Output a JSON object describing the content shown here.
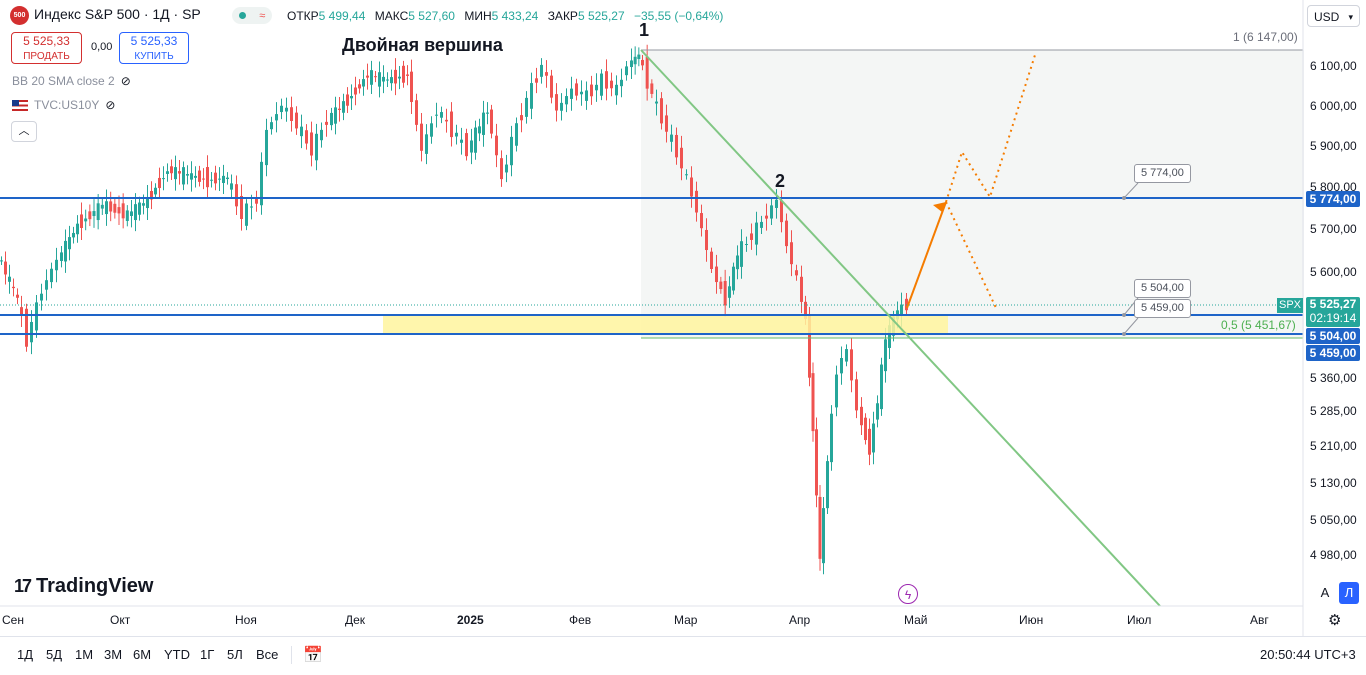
{
  "header": {
    "symbol_title": "Индекс S&P 500 · 1Д · SP",
    "logo_text": "500",
    "open_label": "ОТКР",
    "open_value": "5 499,44",
    "high_label": "МАКС",
    "high_value": "5 527,60",
    "low_label": "МИН",
    "low_value": "5 433,24",
    "close_label": "ЗАКР",
    "close_value": "5 525,27",
    "change": "−35,55 (−0,64%)"
  },
  "trade": {
    "sell_price": "5 525,33",
    "sell_label": "ПРОДАТЬ",
    "spread": "0,00",
    "buy_price": "5 525,33",
    "buy_label": "КУПИТЬ"
  },
  "indicators": [
    {
      "label": "BB 20 SMA close 2"
    },
    {
      "label": "TVC:US10Y"
    }
  ],
  "currency": "USD",
  "annotations": {
    "double_top": "Двойная вершина",
    "peak1": "1",
    "peak2": "2",
    "fib_top": "1 (6 147,00)",
    "fib_half": "0,5 (5 451,67)",
    "box_5774": "5 774,00",
    "box_5504": "5 504,00",
    "box_5459": "5 459,00"
  },
  "price_axis": {
    "labels": [
      "6 100,00",
      "6 000,00",
      "5 900,00",
      "5 800,00",
      "5 700,00",
      "5 600,00",
      "5 360,00",
      "5 285,00",
      "5 210,00",
      "5 130,00",
      "5 050,00",
      "4 980,00"
    ],
    "tag_5774": "5 774,00",
    "spx_label": "SPX",
    "last_price": "5 525,27",
    "countdown": "02:19:14",
    "tag_5504": "5 504,00",
    "tag_5459": "5 459,00"
  },
  "time_axis": {
    "labels": [
      "Сен",
      "Окт",
      "Ноя",
      "Дек",
      "2025",
      "Фев",
      "Мар",
      "Апр",
      "Май",
      "Июн",
      "Июл",
      "Авг"
    ]
  },
  "timeframes": [
    "1Д",
    "5Д",
    "1М",
    "3М",
    "6М",
    "YTD",
    "1Г",
    "5Л",
    "Все"
  ],
  "clock": "20:50:44 UTC+3",
  "brand": "TradingView",
  "scale_buttons": {
    "auto": "A",
    "log": "Л"
  },
  "colors": {
    "up": "#26a69a",
    "down": "#ef5350",
    "level": "#1e64c8",
    "trend": "#81c784",
    "projection": "#f57c00",
    "zone": "#fff59d"
  }
}
